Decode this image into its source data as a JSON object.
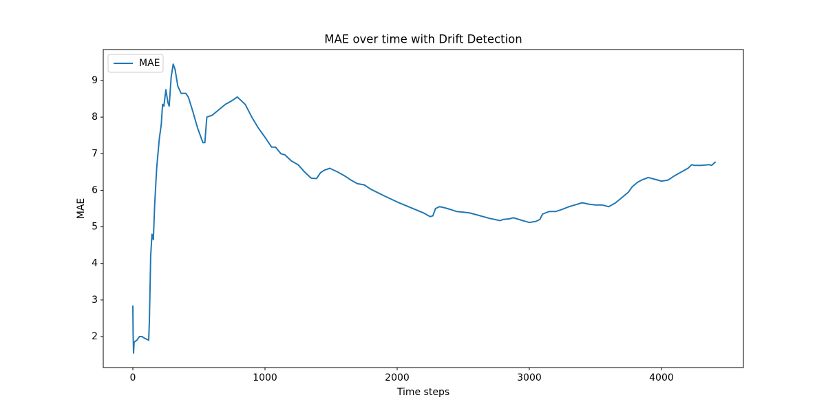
{
  "chart_data": {
    "type": "line",
    "title": "MAE over time with Drift Detection",
    "x_label": "Time steps",
    "y_label": "MAE",
    "xlim": [
      -224,
      4620
    ],
    "ylim": [
      1.153,
      9.847
    ],
    "xticks": [
      0,
      1000,
      2000,
      3000,
      4000
    ],
    "yticks": [
      2,
      3,
      4,
      5,
      6,
      7,
      8,
      9
    ],
    "legend_position": "upper left",
    "series": [
      {
        "name": "MAE",
        "color": "#1f77b4",
        "x": [
          0,
          2,
          5,
          10,
          30,
          50,
          70,
          90,
          110,
          120,
          125,
          135,
          145,
          155,
          165,
          180,
          200,
          215,
          225,
          235,
          250,
          265,
          275,
          290,
          305,
          320,
          340,
          365,
          400,
          420,
          450,
          490,
          530,
          545,
          560,
          600,
          650,
          700,
          750,
          790,
          820,
          850,
          900,
          950,
          1000,
          1050,
          1080,
          1120,
          1150,
          1200,
          1250,
          1300,
          1350,
          1390,
          1420,
          1450,
          1490,
          1550,
          1600,
          1650,
          1700,
          1750,
          1800,
          1900,
          2000,
          2100,
          2200,
          2250,
          2270,
          2290,
          2320,
          2350,
          2400,
          2450,
          2500,
          2550,
          2600,
          2700,
          2780,
          2800,
          2850,
          2880,
          2950,
          3000,
          3050,
          3080,
          3100,
          3150,
          3200,
          3250,
          3300,
          3400,
          3450,
          3500,
          3550,
          3600,
          3650,
          3700,
          3750,
          3780,
          3820,
          3850,
          3900,
          3950,
          4000,
          4050,
          4100,
          4150,
          4200,
          4230,
          4250,
          4300,
          4360,
          4380,
          4410
        ],
        "values": [
          2.85,
          2.1,
          1.55,
          1.85,
          1.9,
          2.0,
          2.0,
          1.95,
          1.92,
          1.9,
          2.4,
          4.2,
          4.8,
          4.65,
          5.6,
          6.6,
          7.4,
          7.8,
          8.35,
          8.3,
          8.75,
          8.4,
          8.3,
          9.1,
          9.45,
          9.3,
          8.85,
          8.65,
          8.65,
          8.55,
          8.2,
          7.7,
          7.3,
          7.3,
          8.0,
          8.05,
          8.2,
          8.35,
          8.45,
          8.55,
          8.45,
          8.35,
          8.0,
          7.7,
          7.45,
          7.18,
          7.18,
          7.0,
          6.97,
          6.8,
          6.7,
          6.5,
          6.33,
          6.32,
          6.48,
          6.55,
          6.6,
          6.5,
          6.4,
          6.28,
          6.18,
          6.15,
          6.03,
          5.85,
          5.68,
          5.53,
          5.38,
          5.28,
          5.3,
          5.5,
          5.55,
          5.53,
          5.48,
          5.42,
          5.4,
          5.38,
          5.33,
          5.23,
          5.17,
          5.2,
          5.22,
          5.25,
          5.17,
          5.12,
          5.15,
          5.2,
          5.35,
          5.42,
          5.42,
          5.48,
          5.55,
          5.66,
          5.62,
          5.6,
          5.6,
          5.55,
          5.65,
          5.8,
          5.95,
          6.1,
          6.22,
          6.28,
          6.35,
          6.3,
          6.25,
          6.28,
          6.4,
          6.5,
          6.6,
          6.7,
          6.68,
          6.68,
          6.7,
          6.68,
          6.78
        ]
      }
    ]
  }
}
